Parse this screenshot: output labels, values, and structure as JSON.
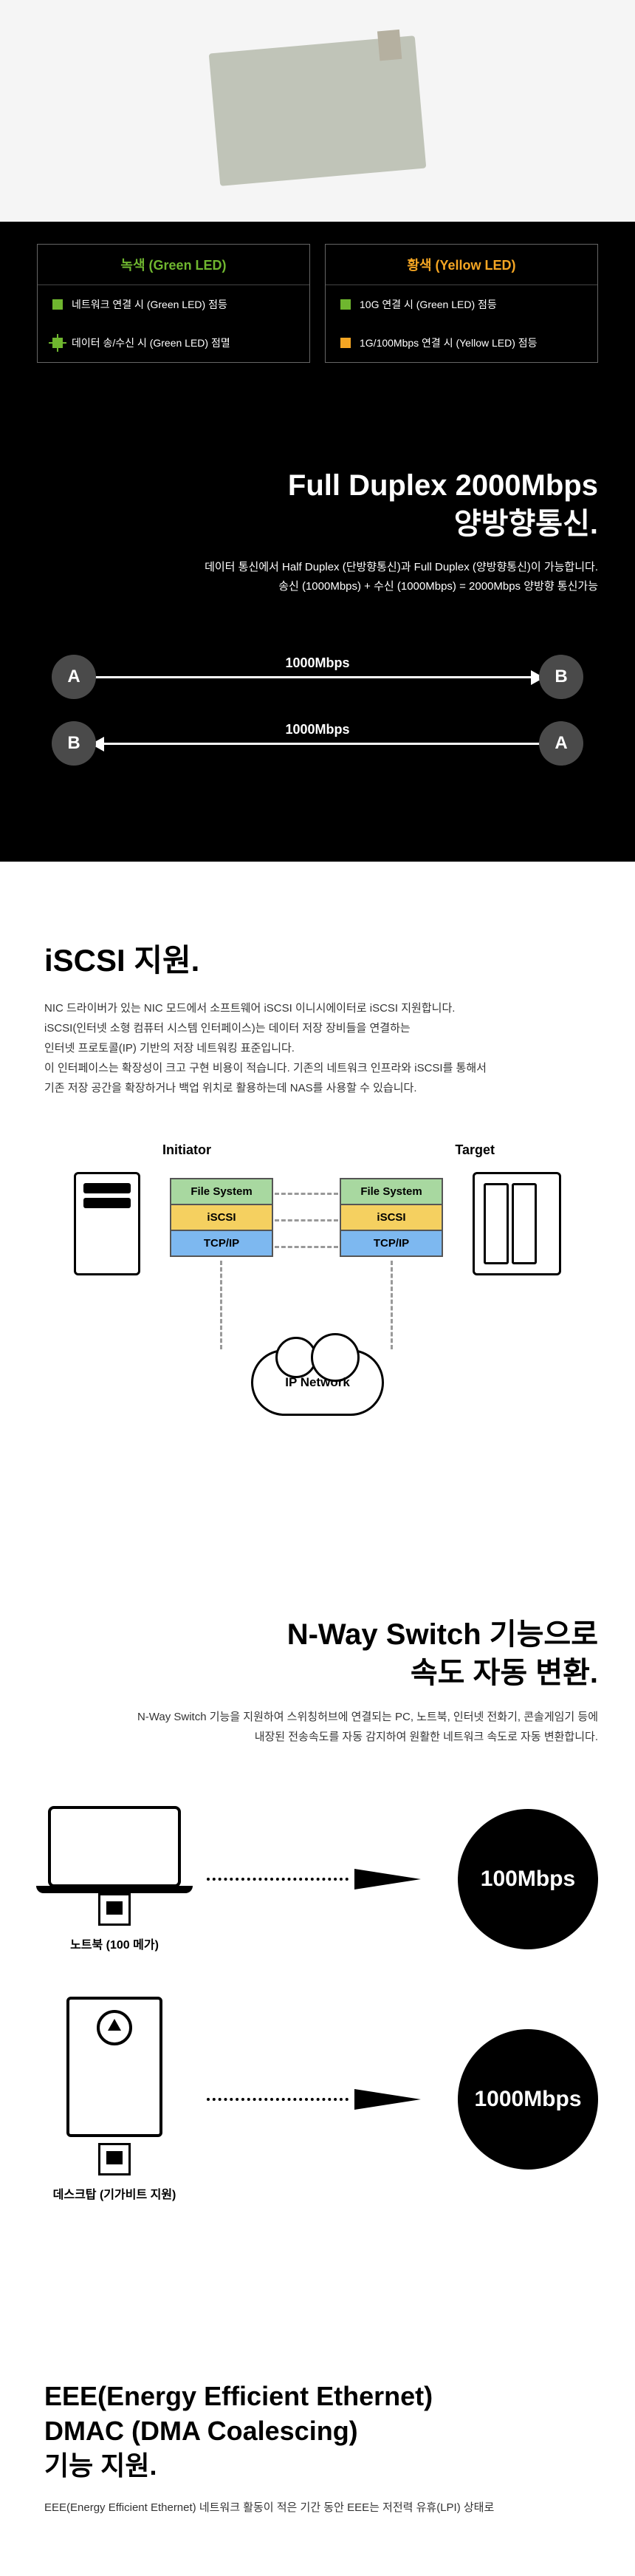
{
  "led": {
    "green_title": "녹색 (Green LED)",
    "yellow_title": "황색 (Yellow LED)",
    "green_items": [
      "네트워크 연결 시 (Green LED) 점등",
      "데이터 송/수신 시 (Green LED) 점멸"
    ],
    "yellow_items": [
      "10G 연결 시 (Green LED) 점등",
      "1G/100Mbps 연결 시 (Yellow LED) 점등"
    ]
  },
  "duplex": {
    "title_line1": "Full Duplex 2000Mbps",
    "title_line2": "양방향통신.",
    "desc_line1": "데이터 통신에서 Half Duplex (단방향통신)과 Full Duplex (양방향통신)이 가능합니다.",
    "desc_line2": "송신 (1000Mbps) + 수신 (1000Mbps) = 2000Mbps 양방향 통신가능",
    "speed": "1000Mbps",
    "node_a": "A",
    "node_b": "B"
  },
  "iscsi": {
    "title": "iSCSI 지원.",
    "desc": "NIC 드라이버가 있는 NIC 모드에서 소프트웨어 iSCSI 이니시에이터로 iSCSI 지원합니다.\niSCSI(인터넷 소형 컴퓨터 시스템 인터페이스)는 데이터 저장 장비들을 연결하는\n인터넷 프로토콜(IP) 기반의 저장 네트워킹 표준입니다.\n이 인터페이스는 확장성이 크고 구현 비용이 적습니다. 기존의 네트워크 인프라와 iSCSI를 통해서\n기존 저장 공간을 확장하거나 백업 위치로 활용하는데 NAS를 사용할 수 있습니다.",
    "initiator": "Initiator",
    "target": "Target",
    "layers": {
      "fs": "File System",
      "iscsi": "iSCSI",
      "tcp": "TCP/IP"
    },
    "cloud": "IP Network"
  },
  "nway": {
    "title_line1": "N-Way Switch 기능으로",
    "title_line2": "속도 자동 변환.",
    "desc": "N-Way Switch 기능을 지원하여 스위칭허브에 연결되는 PC, 노트북, 인터넷 전화기, 콘솔게임기 등에\n내장된 전송속도를 자동 감지하여 원활한 네트워크 속도로 자동 변환합니다.",
    "laptop_label": "노트북 (100 메가)",
    "desktop_label": "데스크탑 (기가비트 지원)",
    "speed_100": "100Mbps",
    "speed_1000": "1000Mbps"
  },
  "eee": {
    "title": "EEE(Energy Efficient Ethernet)\nDMAC (DMA Coalescing)\n기능 지원.",
    "desc": "EEE(Energy Efficient Ethernet) 네트워크 활동이 적은 기간 동안 EEE는 저전력 유휴(LPI) 상태로"
  },
  "colors": {
    "green": "#6fb62f",
    "yellow": "#f5a623",
    "fs_bg": "#a8d8a0",
    "iscsi_bg": "#f5d060",
    "tcp_bg": "#7db8f0"
  }
}
